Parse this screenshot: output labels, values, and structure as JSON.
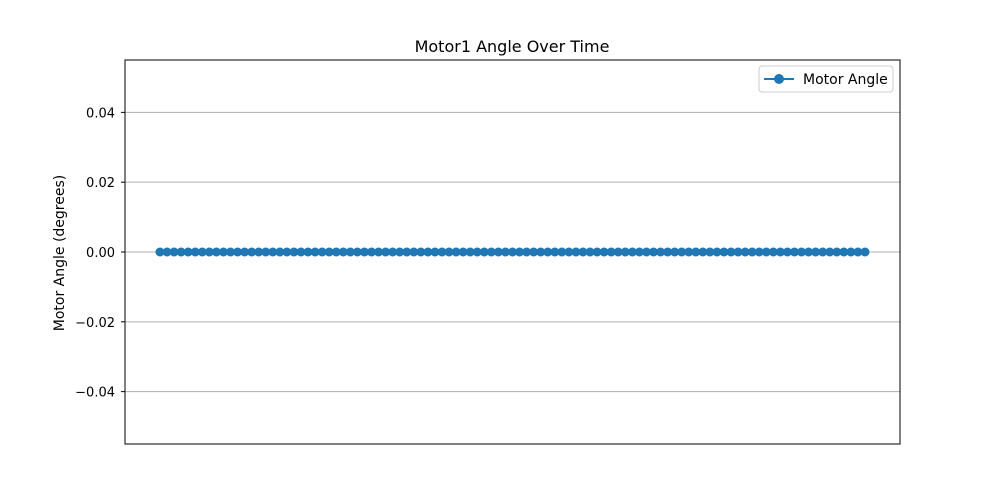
{
  "chart_data": {
    "type": "line",
    "title": "Motor1 Angle Over Time",
    "xlabel": "",
    "ylabel": "Motor Angle (degrees)",
    "ylim": [
      -0.055,
      0.055
    ],
    "yticks": [
      -0.04,
      -0.02,
      0.0,
      0.02,
      0.04
    ],
    "ytick_labels": [
      "−0.04",
      "−0.02",
      "0.00",
      "0.02",
      "0.04"
    ],
    "xticks_visible": false,
    "grid": "horizontal",
    "legend": "top-right",
    "series": [
      {
        "name": "Motor Angle",
        "color": "#1f77b4",
        "marker": "circle",
        "values": [
          0,
          0,
          0,
          0,
          0,
          0,
          0,
          0,
          0,
          0,
          0,
          0,
          0,
          0,
          0,
          0,
          0,
          0,
          0,
          0,
          0,
          0,
          0,
          0,
          0,
          0,
          0,
          0,
          0,
          0,
          0,
          0,
          0,
          0,
          0,
          0,
          0,
          0,
          0,
          0,
          0,
          0,
          0,
          0,
          0,
          0,
          0,
          0,
          0,
          0,
          0,
          0,
          0,
          0,
          0,
          0,
          0,
          0,
          0,
          0,
          0,
          0,
          0,
          0,
          0,
          0,
          0,
          0,
          0,
          0,
          0,
          0,
          0,
          0,
          0,
          0,
          0,
          0,
          0,
          0,
          0,
          0,
          0,
          0,
          0,
          0,
          0,
          0,
          0,
          0,
          0,
          0,
          0,
          0,
          0,
          0,
          0,
          0,
          0,
          0,
          0
        ]
      }
    ]
  }
}
